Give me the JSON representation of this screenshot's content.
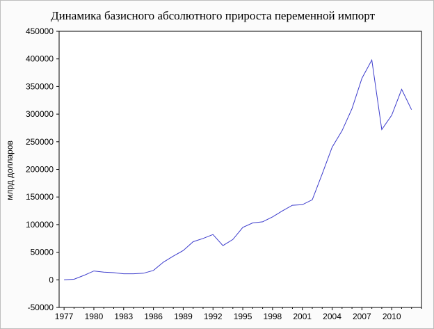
{
  "chart_data": {
    "type": "line",
    "title": "Динамика базисного абсолютного прироста переменной импорт",
    "xlabel": "",
    "ylabel": "млрд долларов",
    "xlim": [
      1976.5,
      2013
    ],
    "ylim": [
      -50000,
      450000
    ],
    "x_ticks": [
      1977,
      1980,
      1983,
      1986,
      1989,
      1992,
      1995,
      1998,
      2001,
      2004,
      2007,
      2010
    ],
    "y_ticks": [
      -50000,
      0,
      50000,
      100000,
      150000,
      200000,
      250000,
      300000,
      350000,
      400000,
      450000
    ],
    "grid": false,
    "series": [
      {
        "color": "#3b3bcc",
        "x": [
          1977,
          1978,
          1979,
          1980,
          1981,
          1982,
          1983,
          1984,
          1985,
          1986,
          1987,
          1988,
          1989,
          1990,
          1991,
          1992,
          1993,
          1994,
          1995,
          1996,
          1997,
          1998,
          1999,
          2000,
          2001,
          2002,
          2003,
          2004,
          2005,
          2006,
          2007,
          2008,
          2009,
          2010,
          2011,
          2012
        ],
        "values": [
          0,
          1000,
          8000,
          16000,
          14000,
          13000,
          11000,
          11000,
          12000,
          17000,
          32000,
          43000,
          53000,
          69000,
          75000,
          82000,
          62000,
          73000,
          95000,
          103000,
          105000,
          114000,
          125000,
          135000,
          136000,
          145000,
          192000,
          240000,
          270000,
          310000,
          365000,
          398000,
          272000,
          298000,
          345000,
          308000
        ]
      }
    ]
  }
}
